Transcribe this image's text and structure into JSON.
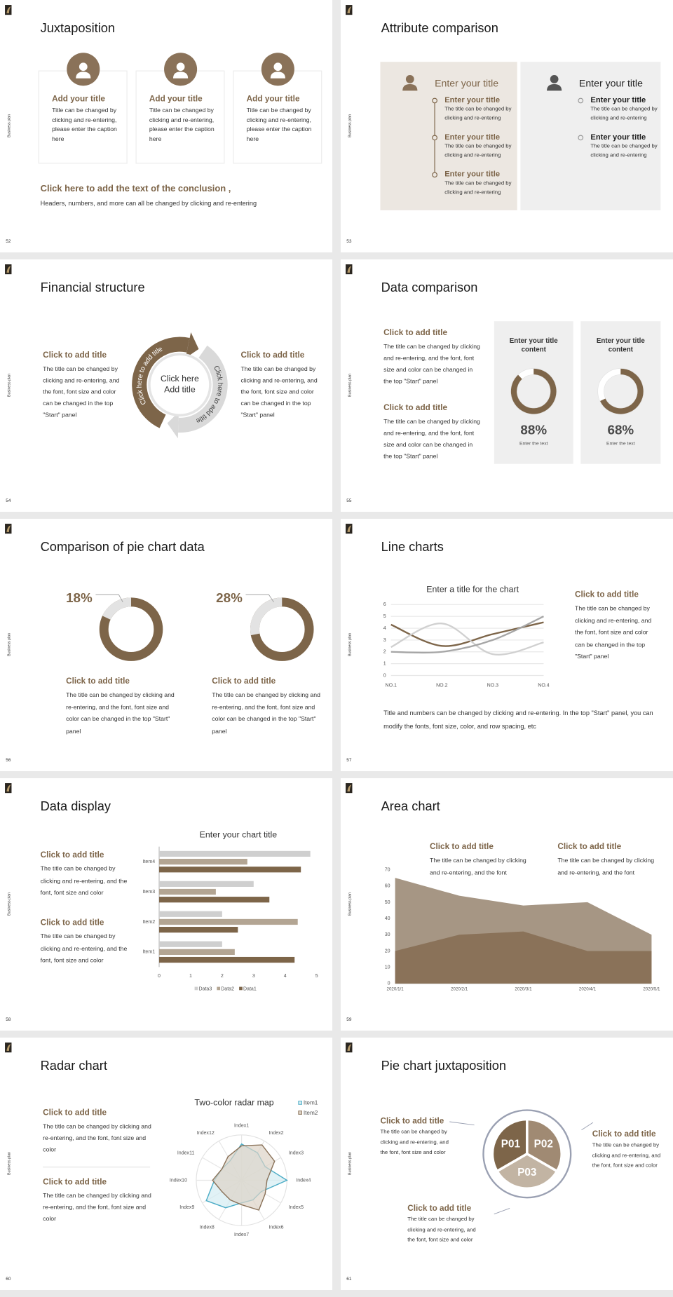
{
  "slides": [
    {
      "page": "52",
      "side_label": "Business plan",
      "title": "Juxtaposition",
      "cards": [
        {
          "title": "Add your title",
          "text": "Title can be changed by clicking and re-entering, please enter the caption here"
        },
        {
          "title": "Add your title",
          "text": "Title can be changed by clicking and re-entering, please enter the caption here"
        },
        {
          "title": "Add your title",
          "text": "Title can be changed by clicking and re-entering, please enter the caption here"
        }
      ],
      "conclusion": {
        "title": "Click here to add the text of the conclusion ,",
        "text": "Headers, numbers, and more can all be changed by clicking and re-entering"
      }
    },
    {
      "page": "53",
      "side_label": "Business plan",
      "title": "Attribute comparison",
      "panels": [
        {
          "heading": "Enter your title",
          "items": [
            {
              "title": "Enter your title",
              "text": "The title can be changed by clicking and re-entering"
            },
            {
              "title": "Enter your title",
              "text": "The title can be changed by clicking and re-entering"
            },
            {
              "title": "Enter your title",
              "text": "The title can be changed by clicking and re-entering"
            }
          ]
        },
        {
          "heading": "Enter your title",
          "items": [
            {
              "title": "Enter your title",
              "text": "The title can be changed by clicking and re-entering"
            },
            {
              "title": "Enter your title",
              "text": "The title can be changed by clicking and re-entering"
            }
          ]
        }
      ]
    },
    {
      "page": "54",
      "side_label": "Business plan",
      "title": "Financial structure",
      "blocks": [
        {
          "title": "Click to add title",
          "text": "The title can be changed by clicking and re-entering, and the font, font size and color can be changed in the top \"Start\" panel"
        },
        {
          "title": "Click to add title",
          "text": "The title can be changed by clicking and re-entering, and the font, font size and color can be changed in the top \"Start\" panel"
        }
      ],
      "center": "Click here Add title",
      "arrow_labels": [
        "Click here to add title",
        "Click here to add title"
      ]
    },
    {
      "page": "55",
      "side_label": "Business plan",
      "title": "Data comparison",
      "blocks": [
        {
          "title": "Click to add title",
          "text": "The title can be changed by clicking and re-entering, and the font, font size and color can be changed in the top \"Start\" panel"
        },
        {
          "title": "Click to add title",
          "text": "The title can be changed by clicking and re-entering, and the font, font size and color can be changed in the top \"Start\" panel"
        }
      ],
      "chart_data": [
        {
          "type": "donut",
          "title": "Enter your title content",
          "values": [
            88
          ],
          "value_labels": [
            "88%"
          ],
          "caption": "Enter the text",
          "color": "#7d6549",
          "track_color": "#ffffff"
        },
        {
          "type": "donut",
          "title": "Enter your title content",
          "values": [
            68
          ],
          "value_labels": [
            "68%"
          ],
          "caption": "Enter the text",
          "color": "#7d6549",
          "track_color": "#ffffff"
        }
      ]
    },
    {
      "page": "56",
      "side_label": "Business plan",
      "title": "Comparison of pie chart data",
      "blocks": [
        {
          "title": "Click to add title",
          "text": "The title can be changed by clicking and re-entering, and the font, font size and color can be changed in the top \"Start\" panel"
        },
        {
          "title": "Click to add title",
          "text": "The title can be changed by clicking and re-entering, and the font, font size and color can be changed in the top \"Start\" panel"
        }
      ],
      "chart_data": [
        {
          "type": "donut",
          "values": [
            18
          ],
          "value_labels": [
            "18%"
          ],
          "color": "#e3e3e3",
          "track_color": "#7d6549",
          "direction": "counterclockwise"
        },
        {
          "type": "donut",
          "values": [
            28
          ],
          "value_labels": [
            "28%"
          ],
          "color": "#e3e3e3",
          "track_color": "#7d6549",
          "direction": "counterclockwise"
        }
      ]
    },
    {
      "page": "57",
      "side_label": "Business plan",
      "title": "Line charts",
      "block": {
        "title": "Click to add title",
        "text": "The title can be changed by clicking and re-entering, and the font, font size and color can be changed in the top \"Start\" panel"
      },
      "note": "Title and numbers can be changed by clicking and re-entering. In the top \"Start\" panel, you can modify the fonts, font size, color, and row spacing, etc",
      "chart_data": {
        "type": "line",
        "title": "Enter a title for the chart",
        "categories": [
          "NO.1",
          "NO.2",
          "NO.3",
          "NO.4"
        ],
        "series": [
          {
            "color": "#7d6549",
            "values": [
              4.3,
              2.5,
              3.5,
              4.5
            ]
          },
          {
            "color": "#d0d0d0",
            "values": [
              2.4,
              4.4,
              1.8,
              2.8
            ]
          },
          {
            "color": "#a6a6a6",
            "values": [
              2,
              2,
              3,
              5
            ]
          }
        ],
        "ylim": [
          0,
          6
        ],
        "yticks": [
          0,
          1,
          2,
          3,
          4,
          5,
          6
        ],
        "grid": true,
        "smooth": true
      }
    },
    {
      "page": "58",
      "side_label": "Business plan",
      "title": "Data display",
      "blocks": [
        {
          "title": "Click to add title",
          "text": "The title can be changed by clicking and re-entering, and the font, font size and color"
        },
        {
          "title": "Click to add title",
          "text": "The title can be changed by clicking and re-entering, and the font, font size and color"
        }
      ],
      "chart_data": {
        "type": "bar",
        "orientation": "horizontal",
        "title": "Enter your chart title",
        "categories": [
          "Item1",
          "Item2",
          "Item3",
          "Item4"
        ],
        "series": [
          {
            "name": "Data1",
            "color": "#7d6549",
            "values": [
              4.3,
              2.5,
              3.5,
              4.5
            ]
          },
          {
            "name": "Data2",
            "color": "#b3a593",
            "values": [
              2.4,
              4.4,
              1.8,
              2.8
            ]
          },
          {
            "name": "Data3",
            "color": "#cfcfcf",
            "values": [
              2,
              2,
              3,
              4.8
            ]
          }
        ],
        "xlim": [
          0,
          5
        ],
        "xticks": [
          0,
          1,
          2,
          3,
          4,
          5
        ],
        "legend": "bottom"
      }
    },
    {
      "page": "59",
      "side_label": "Business plan",
      "title": "Area chart",
      "blocks": [
        {
          "title": "Click to add title",
          "text": "The title can be changed by clicking and re-entering, and the font"
        },
        {
          "title": "Click to add title",
          "text": "The title can be changed by clicking and re-entering, and the font"
        }
      ],
      "chart_data": {
        "type": "area",
        "x": [
          "2020/1/1",
          "2020/2/1",
          "2020/3/1",
          "2020/4/1",
          "2020/5/1"
        ],
        "series": [
          {
            "color": "#a69684",
            "values": [
              65,
              54,
              48,
              50,
              30
            ]
          },
          {
            "color": "#8a7259",
            "values": [
              20,
              30,
              32,
              20,
              20
            ]
          }
        ],
        "ylim": [
          0,
          70
        ],
        "yticks": [
          0,
          10,
          20,
          30,
          40,
          50,
          60,
          70
        ]
      }
    },
    {
      "page": "60",
      "side_label": "Business plan",
      "title": "Radar chart",
      "blocks": [
        {
          "title": "Click to add title",
          "text": "The title can be changed by clicking and re-entering, and the font, font size and color"
        },
        {
          "title": "Click to add title",
          "text": "The title can be changed by clicking and re-entering, and the font, font size and color"
        }
      ],
      "chart_data": {
        "type": "radar",
        "title": "Two-color radar map",
        "categories": [
          "Index1",
          "Index2",
          "Index3",
          "Index4",
          "Index5",
          "Index6",
          "Index7",
          "Index8",
          "Index9",
          "Index10",
          "Index11",
          "Index12"
        ],
        "series": [
          {
            "name": "Item1",
            "color": "#4bacc6",
            "fill": "#d4ecf2",
            "values": [
              4,
              3.5,
              3,
              5,
              2.5,
              2.5,
              2.5,
              3.5,
              4.5,
              3,
              2.5,
              2.5
            ]
          },
          {
            "name": "Item2",
            "color": "#8a7259",
            "fill": "#ddd3c6",
            "values": [
              3.8,
              4.5,
              4.2,
              2.8,
              3,
              3.8,
              2.7,
              2.5,
              2.5,
              3.2,
              2.5,
              3
            ]
          }
        ],
        "rlim": [
          0,
          5
        ],
        "legend": "top-right"
      }
    },
    {
      "page": "61",
      "side_label": "Business plan",
      "title": "Pie chart juxtaposition",
      "blocks": [
        {
          "title": "Click to add title",
          "text": "The title can be changed by clicking and re-entering, and the font, font size and color"
        },
        {
          "title": "Click to add title",
          "text": "The title can be changed by clicking and re-entering, and the font, font size and color"
        },
        {
          "title": "Click to add title",
          "text": "The title can be changed by clicking and re-entering, and the font, font size and color"
        }
      ],
      "segments": [
        "P01",
        "P02",
        "P03"
      ]
    }
  ]
}
